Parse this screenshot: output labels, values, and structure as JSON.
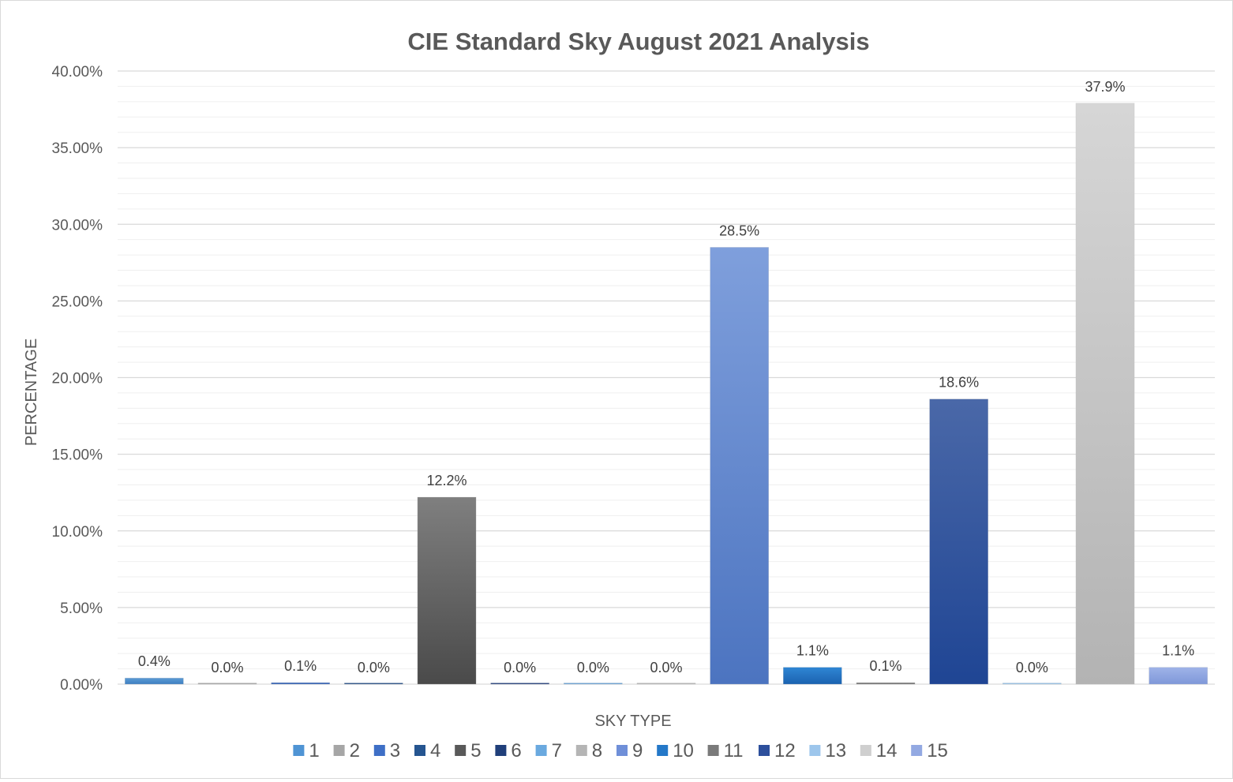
{
  "chart_data": {
    "type": "bar",
    "title": "CIE Standard Sky August 2021 Analysis",
    "xlabel": "SKY TYPE",
    "ylabel": "PERCENTAGE",
    "ylim": [
      0,
      40
    ],
    "ytick_step": 5,
    "ytick_labels": [
      "0.00%",
      "5.00%",
      "10.00%",
      "15.00%",
      "20.00%",
      "25.00%",
      "30.00%",
      "35.00%",
      "40.00%"
    ],
    "gridlines": "major and minor horizontal",
    "legend_position": "bottom",
    "categories": [
      "1",
      "2",
      "3",
      "4",
      "5",
      "6",
      "7",
      "8",
      "9",
      "10",
      "11",
      "12",
      "13",
      "14",
      "15"
    ],
    "values": [
      0.4,
      0.0,
      0.1,
      0.0,
      12.2,
      0.0,
      0.0,
      0.0,
      28.5,
      1.1,
      0.1,
      18.6,
      0.0,
      37.9,
      1.1
    ],
    "data_labels": [
      "0.4%",
      "0.0%",
      "0.1%",
      "0.0%",
      "12.2%",
      "0.0%",
      "0.0%",
      "0.0%",
      "28.5%",
      "1.1%",
      "0.1%",
      "18.6%",
      "0.0%",
      "37.9%",
      "1.1%"
    ],
    "colors": [
      [
        "#5b9bd5",
        "#3f7fc0"
      ],
      [
        "#bfbfbf",
        "#959595"
      ],
      [
        "#4472c4",
        "#2f5cae"
      ],
      [
        "#2e5d9a",
        "#1d4478"
      ],
      [
        "#7f7f7f",
        "#4a4a4a"
      ],
      [
        "#2a4a8a",
        "#1a3370"
      ],
      [
        "#7cb3e2",
        "#5a97cf"
      ],
      [
        "#c9c9c9",
        "#a8a8a8"
      ],
      [
        "#7f9fdc",
        "#4c74c0"
      ],
      [
        "#2f86d4",
        "#1b62b0"
      ],
      [
        "#8c8c8c",
        "#6a6a6a"
      ],
      [
        "#4a68a8",
        "#1f4594"
      ],
      [
        "#a8cdee",
        "#8ab8e2"
      ],
      [
        "#d6d6d6",
        "#b3b3b3"
      ],
      [
        "#9fb3e8",
        "#7f98d9"
      ]
    ],
    "legend_colors": [
      "#4f94d4",
      "#a6a6a6",
      "#3e6fc6",
      "#255590",
      "#595959",
      "#203f7a",
      "#6aa9df",
      "#b5b5b5",
      "#6f8fd8",
      "#2478c8",
      "#7a7a7a",
      "#2d4f9c",
      "#9dc6ec",
      "#cfcfcf",
      "#93a9e2"
    ]
  }
}
